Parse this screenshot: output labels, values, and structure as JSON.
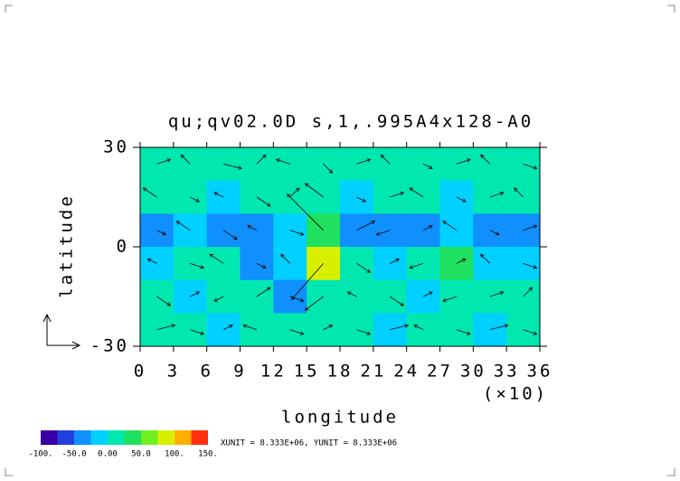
{
  "chart_data": {
    "type": "contour-vector",
    "title": "qu;qv02.0D s,1,.995A4x128-A0",
    "xlabel": "longitude",
    "xunit_label": "(×10)",
    "ylabel": "latitude",
    "xlim": [
      0,
      36
    ],
    "ylim": [
      -30,
      30
    ],
    "xticks": [
      0,
      3,
      6,
      9,
      12,
      15,
      18,
      21,
      24,
      27,
      30,
      33,
      36
    ],
    "yticks": [
      -30,
      0,
      30
    ],
    "field": {
      "lon": [
        1.5,
        4.5,
        7.5,
        10.5,
        13.5,
        16.5,
        19.5,
        22.5,
        25.5,
        28.5,
        31.5,
        34.5
      ],
      "lat": [
        25,
        15,
        5,
        -5,
        -15,
        -25
      ],
      "values": [
        [
          10,
          5,
          15,
          0,
          10,
          5,
          10,
          5,
          10,
          0,
          10,
          5
        ],
        [
          5,
          0,
          -10,
          5,
          0,
          10,
          -5,
          0,
          5,
          -10,
          0,
          5
        ],
        [
          -30,
          -20,
          -40,
          -30,
          -10,
          40,
          -30,
          -40,
          -30,
          -20,
          -40,
          -30
        ],
        [
          -10,
          20,
          0,
          -30,
          -20,
          80,
          10,
          -20,
          0,
          30,
          -10,
          -20
        ],
        [
          5,
          -10,
          0,
          10,
          -30,
          5,
          0,
          10,
          -10,
          0,
          5,
          0
        ],
        [
          0,
          10,
          -10,
          0,
          5,
          0,
          10,
          -5,
          0,
          5,
          -10,
          0
        ]
      ],
      "u": [
        [
          3,
          -2,
          4,
          2,
          -3,
          2,
          3,
          -2,
          2,
          3,
          -2,
          3
        ],
        [
          -3,
          2,
          -2,
          3,
          2,
          -4,
          2,
          3,
          -3,
          2,
          3,
          -2
        ],
        [
          2,
          -3,
          3,
          -2,
          3,
          -8,
          4,
          -3,
          2,
          -3,
          2,
          3
        ],
        [
          -2,
          3,
          -3,
          2,
          -2,
          -7,
          3,
          2,
          -3,
          2,
          -2,
          3
        ],
        [
          3,
          2,
          -2,
          3,
          3,
          -4,
          -2,
          3,
          2,
          -3,
          3,
          2
        ],
        [
          4,
          3,
          2,
          -3,
          3,
          2,
          3,
          4,
          -2,
          3,
          4,
          3
        ]
      ],
      "v": [
        [
          1,
          2,
          -1,
          2,
          1,
          -2,
          1,
          2,
          -1,
          1,
          2,
          -1
        ],
        [
          2,
          -1,
          1,
          -2,
          2,
          3,
          -1,
          1,
          2,
          -1,
          1,
          2
        ],
        [
          -1,
          2,
          -2,
          1,
          -1,
          8,
          2,
          -1,
          1,
          2,
          -1,
          1
        ],
        [
          1,
          -1,
          2,
          -1,
          2,
          -8,
          -2,
          1,
          -1,
          1,
          2,
          -1
        ],
        [
          -2,
          1,
          -1,
          2,
          -1,
          -3,
          1,
          -2,
          1,
          -1,
          1,
          2
        ],
        [
          1,
          -1,
          1,
          1,
          -1,
          1,
          -1,
          1,
          1,
          -1,
          1,
          -1
        ]
      ]
    },
    "colorbar": {
      "levels": [
        -100,
        -75,
        -50,
        -25,
        0,
        25,
        50,
        75,
        100,
        125,
        150
      ],
      "colors": [
        "#3a00a8",
        "#2040e0",
        "#1090ff",
        "#00d0ff",
        "#00e8b0",
        "#20e060",
        "#70f020",
        "#d8f000",
        "#ffb000",
        "#ff3010"
      ],
      "ticks": [
        {
          "value": -100,
          "label": "-100."
        },
        {
          "value": -50,
          "label": "-50.0"
        },
        {
          "value": 0,
          "label": "0.00"
        },
        {
          "value": 50,
          "label": "50.0"
        },
        {
          "value": 100,
          "label": "100."
        },
        {
          "value": 150,
          "label": "150."
        }
      ]
    },
    "unit_note": "XUNIT = 8.333E+06, YUNIT = 8.333E+06"
  }
}
